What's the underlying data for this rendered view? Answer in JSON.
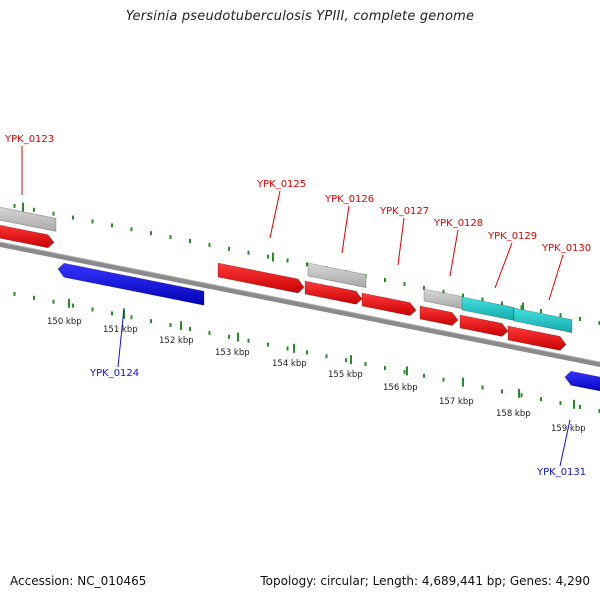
{
  "title": "Yersinia pseudotuberculosis YPIII, complete genome",
  "footer": {
    "accession": "Accession: NC_010465",
    "summary": "Topology: circular; Length: 4,689,441 bp; Genes: 4,290"
  },
  "colors": {
    "forward_gene": "#ee0000",
    "reverse_gene": "#1010dd",
    "grey_feature": "#bdbdbd",
    "cyan_feature": "#22cccc",
    "backbone": "#8a8a8a",
    "tick": "#2a8a2a",
    "forward_label": "#dd0000",
    "reverse_label": "#1010cc",
    "kbp_label": "#222222"
  },
  "kbp_labels": [
    "150 kbp",
    "151 kbp",
    "152 kbp",
    "153 kbp",
    "154 kbp",
    "155 kbp",
    "156 kbp",
    "157 kbp",
    "158 kbp",
    "159 kbp"
  ],
  "gene_labels": [
    {
      "text": "YPK_0123",
      "strand": "forward"
    },
    {
      "text": "YPK_0124",
      "strand": "reverse"
    },
    {
      "text": "YPK_0125",
      "strand": "forward"
    },
    {
      "text": "YPK_0126",
      "strand": "forward"
    },
    {
      "text": "YPK_0127",
      "strand": "forward"
    },
    {
      "text": "YPK_0128",
      "strand": "forward"
    },
    {
      "text": "YPK_0129",
      "strand": "forward"
    },
    {
      "text": "YPK_0130",
      "strand": "forward"
    },
    {
      "text": "YPK_0131",
      "strand": "reverse"
    }
  ]
}
